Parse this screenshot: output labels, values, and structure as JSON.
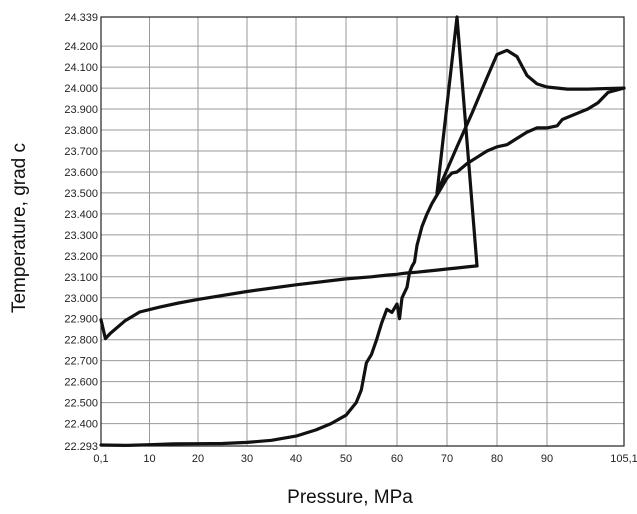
{
  "chart_data": {
    "type": "line",
    "title": "",
    "xlabel": "Pressure, MPa",
    "ylabel": "Temperature, grad c",
    "xlim": [
      0.1,
      105.1
    ],
    "ylim": [
      22.293,
      24.339
    ],
    "x_ticks": [
      0.1,
      10,
      20,
      30,
      40,
      50,
      60,
      70,
      80,
      90,
      105.1
    ],
    "x_tick_labels": [
      "0,1",
      "10",
      "20",
      "30",
      "40",
      "50",
      "60",
      "70",
      "80",
      "90",
      "105,1"
    ],
    "y_ticks": [
      22.293,
      22.4,
      22.5,
      22.6,
      22.7,
      22.8,
      22.9,
      23.0,
      23.1,
      23.2,
      23.3,
      23.4,
      23.5,
      23.6,
      23.7,
      23.8,
      23.9,
      24.0,
      24.1,
      24.2,
      24.339
    ],
    "y_tick_labels": [
      "22.293",
      "22.400",
      "22.500",
      "22.600",
      "22.700",
      "22.800",
      "22.900",
      "23.000",
      "23.100",
      "23.200",
      "23.300",
      "23.400",
      "23.500",
      "23.600",
      "23.700",
      "23.800",
      "23.900",
      "24.000",
      "24.100",
      "24.200",
      "24.339"
    ],
    "grid": true,
    "legend": "none",
    "series": [
      {
        "x": [
          0.1,
          1,
          2,
          5,
          8,
          12,
          16,
          20,
          30,
          40,
          50,
          55,
          58,
          60,
          61,
          62,
          64,
          66,
          68,
          70,
          72,
          74,
          76
        ],
        "y": [
          22.895,
          22.805,
          22.83,
          22.89,
          22.932,
          22.955,
          22.975,
          22.992,
          23.03,
          23.062,
          23.09,
          23.1,
          23.108,
          23.112,
          23.115,
          23.118,
          23.122,
          23.127,
          23.132,
          23.137,
          23.142,
          23.147,
          23.152
        ]
      },
      {
        "x": [
          0.1,
          5,
          10,
          15,
          20,
          25,
          30,
          35,
          40,
          44,
          47,
          50,
          52,
          53,
          54,
          55,
          56,
          57,
          58,
          59,
          60,
          60.5,
          61,
          62,
          62.5,
          63,
          63.5,
          64,
          65,
          66,
          67,
          68,
          69,
          70,
          71,
          72,
          74,
          76,
          78,
          80,
          82,
          84,
          86,
          88,
          90,
          92,
          93,
          94,
          96,
          98,
          100,
          102,
          105.1
        ],
        "y": [
          22.298,
          22.296,
          22.299,
          22.303,
          22.304,
          22.305,
          22.31,
          22.32,
          22.34,
          22.37,
          22.4,
          22.44,
          22.5,
          22.56,
          22.69,
          22.73,
          22.8,
          22.88,
          22.945,
          22.93,
          22.97,
          22.9,
          23.0,
          23.05,
          23.12,
          23.15,
          23.17,
          23.25,
          23.34,
          23.4,
          23.45,
          23.49,
          23.53,
          23.57,
          23.595,
          23.6,
          23.64,
          23.67,
          23.7,
          23.72,
          23.73,
          23.76,
          23.79,
          23.81,
          23.81,
          23.82,
          23.85,
          23.86,
          23.88,
          23.9,
          23.93,
          23.98,
          24.0
        ]
      },
      {
        "x": [
          68,
          72,
          76
        ],
        "y": [
          23.5,
          24.339,
          23.152
        ]
      },
      {
        "x": [
          68,
          72,
          75,
          78,
          80,
          82,
          84,
          86,
          88,
          90,
          94,
          98,
          102,
          105.1
        ],
        "y": [
          23.5,
          23.72,
          23.88,
          24.05,
          24.16,
          24.18,
          24.15,
          24.06,
          24.02,
          24.005,
          23.995,
          23.995,
          23.998,
          24.0
        ]
      }
    ]
  }
}
